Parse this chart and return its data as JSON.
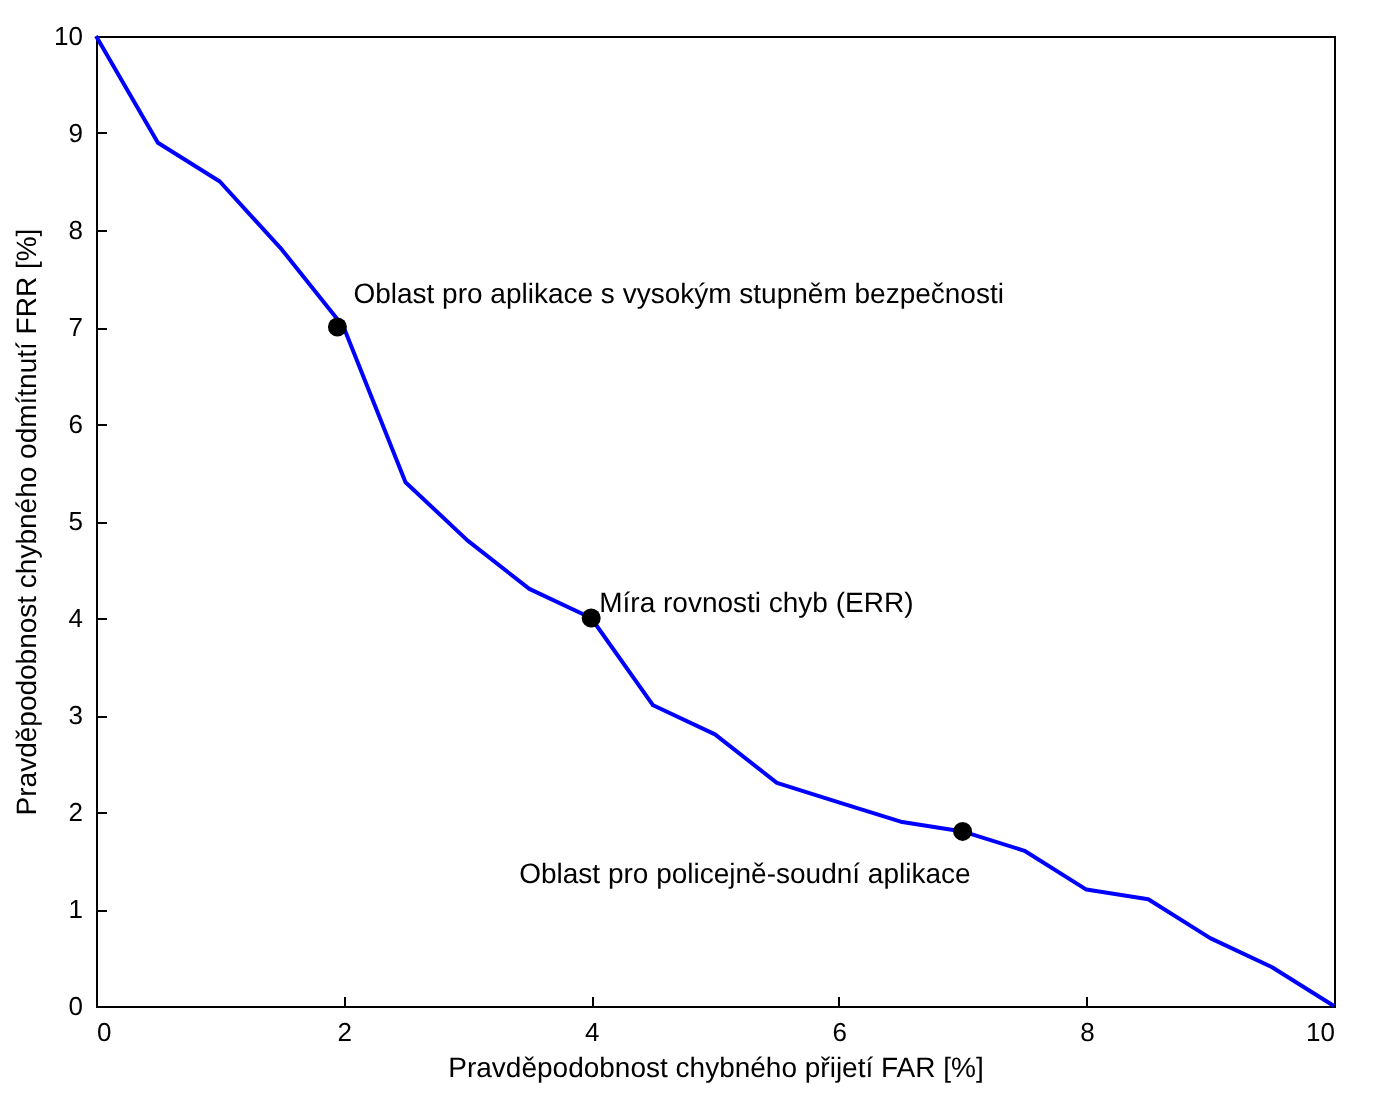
{
  "chart_data": {
    "type": "line",
    "xlabel": "Pravděpodobnost chybného přijetí FAR [%]",
    "ylabel": "Pravděpodobnost chybného odmítnutí FRR [%]",
    "xlim": [
      0,
      10
    ],
    "ylim": [
      0,
      10
    ],
    "xticks": [
      0,
      2,
      4,
      6,
      8,
      10
    ],
    "yticks": [
      0,
      1,
      2,
      3,
      4,
      5,
      6,
      7,
      8,
      9,
      10
    ],
    "grid": false,
    "series": [
      {
        "type": "line",
        "color": "#0000ff",
        "marker": "none",
        "line_style": "solid",
        "x": [
          0,
          0.5,
          1,
          1.5,
          2,
          2.5,
          3,
          3.5,
          4,
          4.5,
          5,
          5.5,
          6,
          6.5,
          7,
          7.5,
          8,
          8.5,
          9,
          9.5,
          10
        ],
        "values": [
          10,
          8.9,
          8.5,
          7.8,
          7,
          5.4,
          4.8,
          4.3,
          4,
          3.1,
          2.8,
          2.3,
          2.1,
          1.9,
          1.8,
          1.6,
          1.2,
          1.1,
          0.7,
          0.4,
          0
        ]
      },
      {
        "type": "scatter",
        "color": "#000000",
        "marker": "circle",
        "x": [
          1.95,
          4,
          7
        ],
        "values": [
          7,
          4,
          1.8
        ]
      }
    ],
    "annotations": [
      {
        "text": "Oblast pro aplikace s vysokým stupněm bezpečnosti",
        "x": 1.95,
        "y": 7
      },
      {
        "text": "Míra rovnosti chyb (ERR)",
        "x": 4,
        "y": 4
      },
      {
        "text": "Oblast pro policejně-soudní aplikace",
        "x": 7,
        "y": 1.8
      }
    ]
  }
}
